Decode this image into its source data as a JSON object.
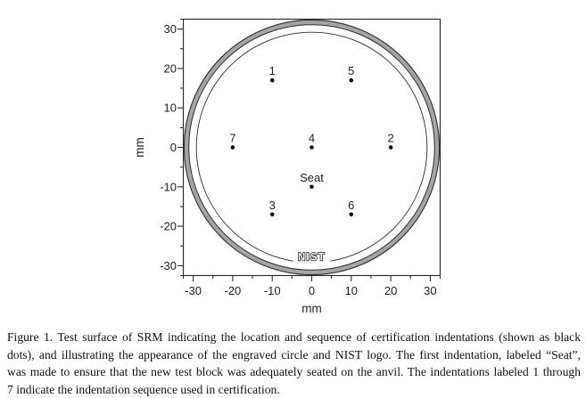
{
  "figure_caption": {
    "lines": [
      "Figure 1.  Test surface of SRM indicating the location and sequence of certification indentations (shown as black",
      "dots), and illustrating the appearance of the engraved circle and NIST logo.  The first indentation, labeled “Seat”,",
      "was made to ensure that the new test block was adequately seated on the anvil.  The indentations labeled 1 through",
      "7 indicate the indentation sequence used in certification."
    ]
  },
  "chart_data": {
    "type": "scatter",
    "title": "",
    "xlabel": "mm",
    "ylabel": "mm",
    "xlim": [
      -32.5,
      32.5
    ],
    "ylim": [
      -32.5,
      32.5
    ],
    "x_major_ticks": [
      -30,
      -20,
      -10,
      0,
      10,
      20,
      30
    ],
    "y_major_ticks": [
      -30,
      -20,
      -10,
      0,
      10,
      20,
      30
    ],
    "minor_tick_step": 5,
    "grid": false,
    "legend": "none",
    "points": [
      {
        "label": "1",
        "x": -10,
        "y": 17
      },
      {
        "label": "5",
        "x": 10,
        "y": 17
      },
      {
        "label": "7",
        "x": -20,
        "y": 0
      },
      {
        "label": "4",
        "x": 0,
        "y": 0
      },
      {
        "label": "2",
        "x": 20,
        "y": 0
      },
      {
        "label": "Seat",
        "x": 0,
        "y": -10
      },
      {
        "label": "3",
        "x": -10,
        "y": -17
      },
      {
        "label": "6",
        "x": 10,
        "y": -17
      }
    ],
    "block_outline": {
      "outer_radius_mm": 32.3,
      "inner_radius_mm": 31.1,
      "band_color": "#a4a4a4"
    },
    "engraved_circle_radius_mm": 29.2,
    "logo": {
      "text": "NIST",
      "x_mm": 0,
      "y_mm": -27.7
    }
  },
  "colors": {
    "line": "#2e2e2e",
    "text": "#1f1f1f",
    "band": "#a4a4a4",
    "dot": "#0a0a0a",
    "background": "#ffffff"
  }
}
